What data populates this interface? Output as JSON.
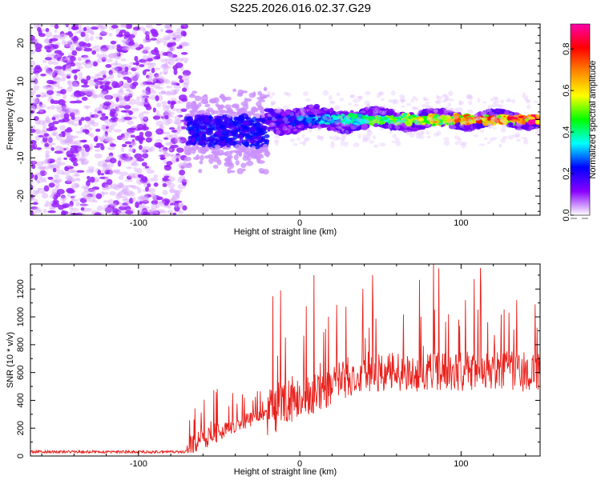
{
  "title": "S225.2026.016.02.37.G29",
  "chart_data": [
    {
      "type": "heatmap",
      "xlabel": "Height of straight line (km)",
      "ylabel": "Frequency (Hz)",
      "xlim": [
        -167,
        149
      ],
      "ylim": [
        -25,
        25
      ],
      "xticks": [
        -100,
        0,
        100
      ],
      "yticks": [
        -20,
        -10,
        0,
        10,
        20
      ],
      "colorbar": {
        "label": "Normalized spectral amplitude",
        "range": [
          0,
          0.92
        ],
        "ticks": [
          0.0,
          0.2,
          0.4,
          0.6,
          0.8
        ],
        "colormap": [
          "#ffffff",
          "#8800ff",
          "#0000ff",
          "#00ffff",
          "#00ff00",
          "#ffff00",
          "#ff8800",
          "#ff0000",
          "#ff00aa"
        ]
      },
      "regions": [
        {
          "x": [
            -167,
            -70
          ],
          "description_value": "scattered noise, amplitude ~0.0-0.1 across all frequencies"
        },
        {
          "x": [
            -70,
            -20
          ],
          "center_freq_hz": -3,
          "amplitude": 0.15
        },
        {
          "x": [
            -20,
            149
          ],
          "center_freq_hz": 0,
          "amplitude_range": [
            0.2,
            0.9
          ]
        }
      ]
    },
    {
      "type": "line",
      "xlabel": "Height of straight line (km)",
      "ylabel": "SNR (10 * v/v)",
      "xlim": [
        -167,
        149
      ],
      "ylim": [
        0,
        1380
      ],
      "xticks": [
        -100,
        0,
        100
      ],
      "yticks": [
        0,
        200,
        400,
        600,
        800,
        1000,
        1200
      ],
      "color": "#e8211c",
      "segments": [
        {
          "x": [
            -167,
            -70
          ],
          "baseline": 20,
          "peak": 40
        },
        {
          "x": [
            -70,
            -20
          ],
          "baseline": 150,
          "peak": 500
        },
        {
          "x": [
            -20,
            40
          ],
          "baseline": 300,
          "peak": 1300
        },
        {
          "x": [
            40,
            149
          ],
          "baseline": 550,
          "peak": 1380
        }
      ],
      "notable_peaks": [
        {
          "x": -12,
          "y": 1190
        },
        {
          "x": 45,
          "y": 1300
        },
        {
          "x": 83,
          "y": 1380
        },
        {
          "x": 146,
          "y": 1090
        }
      ]
    }
  ]
}
